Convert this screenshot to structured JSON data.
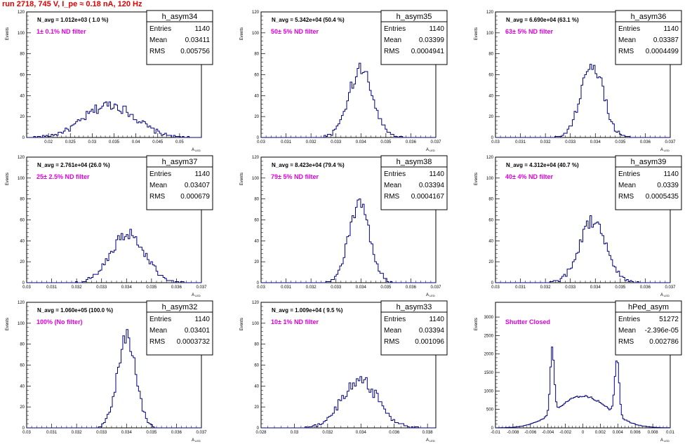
{
  "title": "run 2718,   745 V, I_pe ≈ 0.18 nA, 120 Hz",
  "common": {
    "ylabel": "Events",
    "xlabel": "A",
    "xlabel_sub": "LED",
    "stat_labels": [
      "Entries",
      "Mean",
      "RMS"
    ]
  },
  "chart_data": [
    {
      "type": "bar",
      "name": "h_asym34",
      "navg": "N_avg = 1.012e+03 ( 1.0 %)",
      "filter": "1± 0.1% ND filter",
      "stats": {
        "entries": "1140",
        "mean": "0.03411",
        "rms": "0.005756"
      },
      "xlim": [
        0.015,
        0.055
      ],
      "ylim": [
        0,
        120
      ],
      "xticks": [
        0.02,
        0.025,
        0.03,
        0.035,
        0.04,
        0.045,
        0.05
      ],
      "xticklabels": [
        "0.02",
        "0.025",
        "0.03",
        "0.035",
        "0.04",
        "0.045",
        "0.05"
      ],
      "yticks": [
        0,
        20,
        40,
        60,
        80,
        100,
        120
      ],
      "yticklabels": [
        "0",
        "20",
        "40",
        "60",
        "80",
        "100",
        "120"
      ],
      "peaks": [
        {
          "mu": 0.0341,
          "sigma": 0.0058,
          "n": 1140
        }
      ],
      "binw": 0.0004
    },
    {
      "type": "bar",
      "name": "h_asym35",
      "navg": "N_avg = 5.342e+04 (50.4 %)",
      "filter": "50± 5% ND filter",
      "stats": {
        "entries": "1140",
        "mean": "0.03399",
        "rms": "0.0004941"
      },
      "xlim": [
        0.03,
        0.037
      ],
      "ylim": [
        0,
        120
      ],
      "xticks": [
        0.03,
        0.031,
        0.032,
        0.033,
        0.034,
        0.035,
        0.036,
        0.037
      ],
      "xticklabels": [
        "0.03",
        "0.031",
        "0.032",
        "0.033",
        "0.034",
        "0.035",
        "0.036",
        "0.037"
      ],
      "yticks": [
        0,
        20,
        40,
        60,
        80,
        100,
        120
      ],
      "yticklabels": [
        "0",
        "20",
        "40",
        "60",
        "80",
        "100",
        "120"
      ],
      "peaks": [
        {
          "mu": 0.034,
          "sigma": 0.00049,
          "n": 1140
        }
      ],
      "binw": 7e-05
    },
    {
      "type": "bar",
      "name": "h_asym36",
      "navg": "N_avg = 6.690e+04 (63.1 %)",
      "filter": "63± 5% ND filter",
      "stats": {
        "entries": "1140",
        "mean": "0.03387",
        "rms": "0.0004499"
      },
      "xlim": [
        0.03,
        0.037
      ],
      "ylim": [
        0,
        120
      ],
      "xticks": [
        0.03,
        0.031,
        0.032,
        0.033,
        0.034,
        0.035,
        0.036,
        0.037
      ],
      "xticklabels": [
        "0.03",
        "0.031",
        "0.032",
        "0.033",
        "0.034",
        "0.035",
        "0.036",
        "0.037"
      ],
      "yticks": [
        0,
        20,
        40,
        60,
        80,
        100,
        120
      ],
      "yticklabels": [
        "0",
        "20",
        "40",
        "60",
        "80",
        "100",
        "120"
      ],
      "peaks": [
        {
          "mu": 0.03387,
          "sigma": 0.00045,
          "n": 1140
        }
      ],
      "binw": 7e-05
    },
    {
      "type": "bar",
      "name": "h_asym37",
      "navg": "N_avg = 2.761e+04 (26.0 %)",
      "filter": "25± 2.5% ND filter",
      "stats": {
        "entries": "1140",
        "mean": "0.03407",
        "rms": "0.000679"
      },
      "xlim": [
        0.03,
        0.037
      ],
      "ylim": [
        0,
        120
      ],
      "xticks": [
        0.03,
        0.031,
        0.032,
        0.033,
        0.034,
        0.035,
        0.036,
        0.037
      ],
      "xticklabels": [
        "0.03",
        "0.031",
        "0.032",
        "0.033",
        "0.034",
        "0.035",
        "0.036",
        "0.037"
      ],
      "yticks": [
        0,
        20,
        40,
        60,
        80,
        100,
        120
      ],
      "yticklabels": [
        "0",
        "20",
        "40",
        "60",
        "80",
        "100",
        "120"
      ],
      "peaks": [
        {
          "mu": 0.03407,
          "sigma": 0.00068,
          "n": 1140
        }
      ],
      "binw": 7e-05
    },
    {
      "type": "bar",
      "name": "h_asym38",
      "navg": "N_avg = 8.423e+04 (79.4 %)",
      "filter": "79± 5% ND filter",
      "stats": {
        "entries": "1140",
        "mean": "0.03394",
        "rms": "0.0004167"
      },
      "xlim": [
        0.03,
        0.037
      ],
      "ylim": [
        0,
        120
      ],
      "xticks": [
        0.03,
        0.031,
        0.032,
        0.033,
        0.034,
        0.035,
        0.036,
        0.037
      ],
      "xticklabels": [
        "0.03",
        "0.031",
        "0.032",
        "0.033",
        "0.034",
        "0.035",
        "0.036",
        "0.037"
      ],
      "yticks": [
        0,
        20,
        40,
        60,
        80,
        100,
        120
      ],
      "yticklabels": [
        "0",
        "20",
        "40",
        "60",
        "80",
        "100",
        "120"
      ],
      "peaks": [
        {
          "mu": 0.03394,
          "sigma": 0.00042,
          "n": 1140
        }
      ],
      "binw": 7e-05
    },
    {
      "type": "bar",
      "name": "h_asym39",
      "navg": "N_avg = 4.312e+04 (40.7 %)",
      "filter": "40± 4% ND filter",
      "stats": {
        "entries": "1140",
        "mean": "0.0339",
        "rms": "0.0005435"
      },
      "xlim": [
        0.03,
        0.037
      ],
      "ylim": [
        0,
        120
      ],
      "xticks": [
        0.03,
        0.031,
        0.032,
        0.033,
        0.034,
        0.035,
        0.036,
        0.037
      ],
      "xticklabels": [
        "0.03",
        "0.031",
        "0.032",
        "0.033",
        "0.034",
        "0.035",
        "0.036",
        "0.037"
      ],
      "yticks": [
        0,
        20,
        40,
        60,
        80,
        100,
        120
      ],
      "yticklabels": [
        "0",
        "20",
        "40",
        "60",
        "80",
        "100",
        "120"
      ],
      "peaks": [
        {
          "mu": 0.0339,
          "sigma": 0.00054,
          "n": 1140
        }
      ],
      "binw": 7e-05
    },
    {
      "type": "bar",
      "name": "h_asym32",
      "navg": "N_avg = 1.060e+05 (100.0 %)",
      "filter": "100% (No filter)",
      "stats": {
        "entries": "1140",
        "mean": "0.03401",
        "rms": "0.0003732"
      },
      "xlim": [
        0.03,
        0.037
      ],
      "ylim": [
        0,
        120
      ],
      "xticks": [
        0.03,
        0.031,
        0.032,
        0.033,
        0.034,
        0.035,
        0.036,
        0.037
      ],
      "xticklabels": [
        "0.03",
        "0.031",
        "0.032",
        "0.033",
        "0.034",
        "0.035",
        "0.036",
        "0.037"
      ],
      "yticks": [
        0,
        20,
        40,
        60,
        80,
        100,
        120
      ],
      "yticklabels": [
        "0",
        "20",
        "40",
        "60",
        "80",
        "100",
        "120"
      ],
      "peaks": [
        {
          "mu": 0.03401,
          "sigma": 0.00037,
          "n": 1140
        }
      ],
      "binw": 7e-05
    },
    {
      "type": "bar",
      "name": "h_asym33",
      "navg": "N_avg = 1.009e+04 ( 9.5 %)",
      "filter": "10± 1% ND filter",
      "stats": {
        "entries": "1140",
        "mean": "0.03394",
        "rms": "0.001096"
      },
      "xlim": [
        0.028,
        0.0385
      ],
      "ylim": [
        0,
        120
      ],
      "xticks": [
        0.028,
        0.03,
        0.032,
        0.034,
        0.036,
        0.038
      ],
      "xticklabels": [
        "0.028",
        "0.03",
        "0.032",
        "0.034",
        "0.036",
        "0.038"
      ],
      "yticks": [
        0,
        20,
        40,
        60,
        80,
        100,
        120
      ],
      "yticklabels": [
        "0",
        "20",
        "40",
        "60",
        "80",
        "100",
        "120"
      ],
      "peaks": [
        {
          "mu": 0.03394,
          "sigma": 0.0011,
          "n": 1140
        }
      ],
      "binw": 0.00011
    },
    {
      "type": "bar",
      "name": "hPed_asym",
      "navg": "",
      "filter": "Shutter Closed",
      "stats": {
        "entries": "51272",
        "mean": "-2.396e-05",
        "rms": "0.002786"
      },
      "xlim": [
        -0.01,
        0.01
      ],
      "ylim": [
        0,
        3400
      ],
      "xticks": [
        -0.01,
        -0.008,
        -0.006,
        -0.004,
        -0.002,
        0,
        0.002,
        0.004,
        0.006,
        0.008,
        0.01
      ],
      "xticklabels": [
        "-0.01",
        "-0.008",
        "-0.006",
        "-0.004",
        "-0.002",
        "0",
        "0.002",
        "0.004",
        "0.006",
        "0.008",
        "0.01"
      ],
      "yticks": [
        0,
        500,
        1000,
        1500,
        2000,
        2500,
        3000
      ],
      "yticklabels": [
        "0",
        "500",
        "1000",
        "1500",
        "2000",
        "2500",
        "3000"
      ],
      "peaks": [
        {
          "mu": -0.0035,
          "sigma": 0.00022,
          "n": 6000
        },
        {
          "mu": 0.0039,
          "sigma": 0.00025,
          "n": 6000
        },
        {
          "mu": 0,
          "sigma": 0.0029,
          "n": 39272
        }
      ],
      "binw": 0.00016
    }
  ]
}
